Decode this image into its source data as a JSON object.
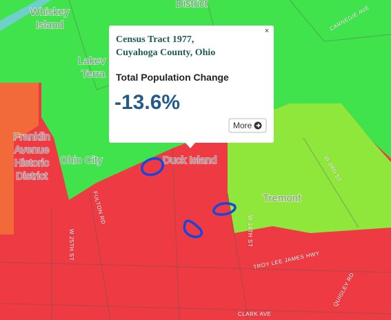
{
  "map": {
    "labels": {
      "district_top": "District",
      "whiskey": [
        "Whiskey",
        "Island"
      ],
      "lakeview": [
        "Lakev",
        "Terra"
      ],
      "carnegie": "CARNEGIE AVE",
      "franklin": [
        "Franklin",
        "Avenue",
        "Historic",
        "District"
      ],
      "ohio_city": "Ohio City",
      "duck_island": "Duck Island",
      "tremont": "Tremont",
      "w3rd": "W 3RD ST",
      "fulton": "FULTON RD",
      "w25": "W 25TH ST",
      "w14": "W 14TH ST",
      "troy": "TROY LEE JAMES HWY",
      "quigley": "QUIGLEY RD",
      "clark": "CLARK AVE"
    }
  },
  "popup": {
    "title": [
      "Census Tract 1977,",
      "Cuyahoga County, Ohio"
    ],
    "metric": "Total Population Change",
    "value": "-13.6%",
    "button": "More",
    "close": "×"
  }
}
